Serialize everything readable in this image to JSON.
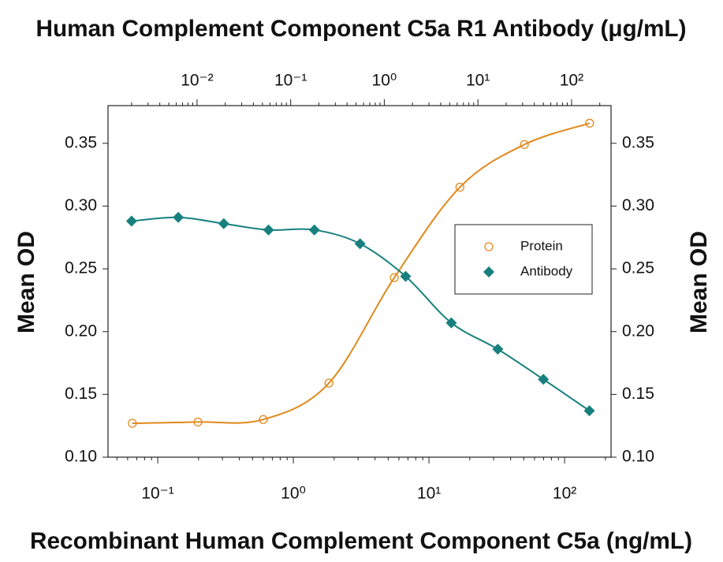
{
  "chart_data": {
    "type": "scatter",
    "title": "Human Complement Component C5a R1 Antibody (μg/mL)",
    "x_label": "Recombinant Human Complement Component C5a (ng/mL)",
    "y_label": "Mean OD",
    "xscale": "log",
    "xlim": [
      0.043,
      220
    ],
    "xticks": [
      {
        "value": 0.1,
        "label": "10⁻¹"
      },
      {
        "value": 1,
        "label": "10⁰"
      },
      {
        "value": 10,
        "label": "10¹"
      },
      {
        "value": 100,
        "label": "10²"
      }
    ],
    "x2lim": [
      0.00112,
      264
    ],
    "x2ticks": [
      {
        "value": 0.01,
        "label": "10⁻²"
      },
      {
        "value": 0.1,
        "label": "10⁻¹"
      },
      {
        "value": 1,
        "label": "10⁰"
      },
      {
        "value": 10,
        "label": "10¹"
      },
      {
        "value": 100,
        "label": "10²"
      }
    ],
    "ylim": [
      0.1,
      0.38
    ],
    "yticks": [
      {
        "value": 0.1,
        "label": "0.10"
      },
      0.15,
      {
        "value": 0.2,
        "label": "0.20"
      },
      0.25,
      {
        "value": 0.3,
        "label": "0.30"
      },
      0.35
    ],
    "legend": "center right",
    "series": [
      {
        "name": "Protein",
        "color": "#e0891c",
        "marker": "circle",
        "x": [
          0.065,
          0.198,
          0.6,
          1.83,
          5.55,
          16.9,
          50.5,
          153
        ],
        "values": [
          0.127,
          0.128,
          0.13,
          0.159,
          0.243,
          0.315,
          0.349,
          0.366
        ]
      },
      {
        "name": "Antibody",
        "color": "#17807e",
        "marker": "diamond",
        "axis": "x2",
        "x": [
          0.002,
          0.0063,
          0.0193,
          0.058,
          0.179,
          0.551,
          1.69,
          5.2,
          16.3,
          50.0,
          155
        ],
        "values": [
          0.288,
          0.291,
          0.286,
          0.281,
          0.281,
          0.27,
          0.244,
          0.207,
          0.186,
          0.162,
          0.137
        ]
      }
    ]
  }
}
